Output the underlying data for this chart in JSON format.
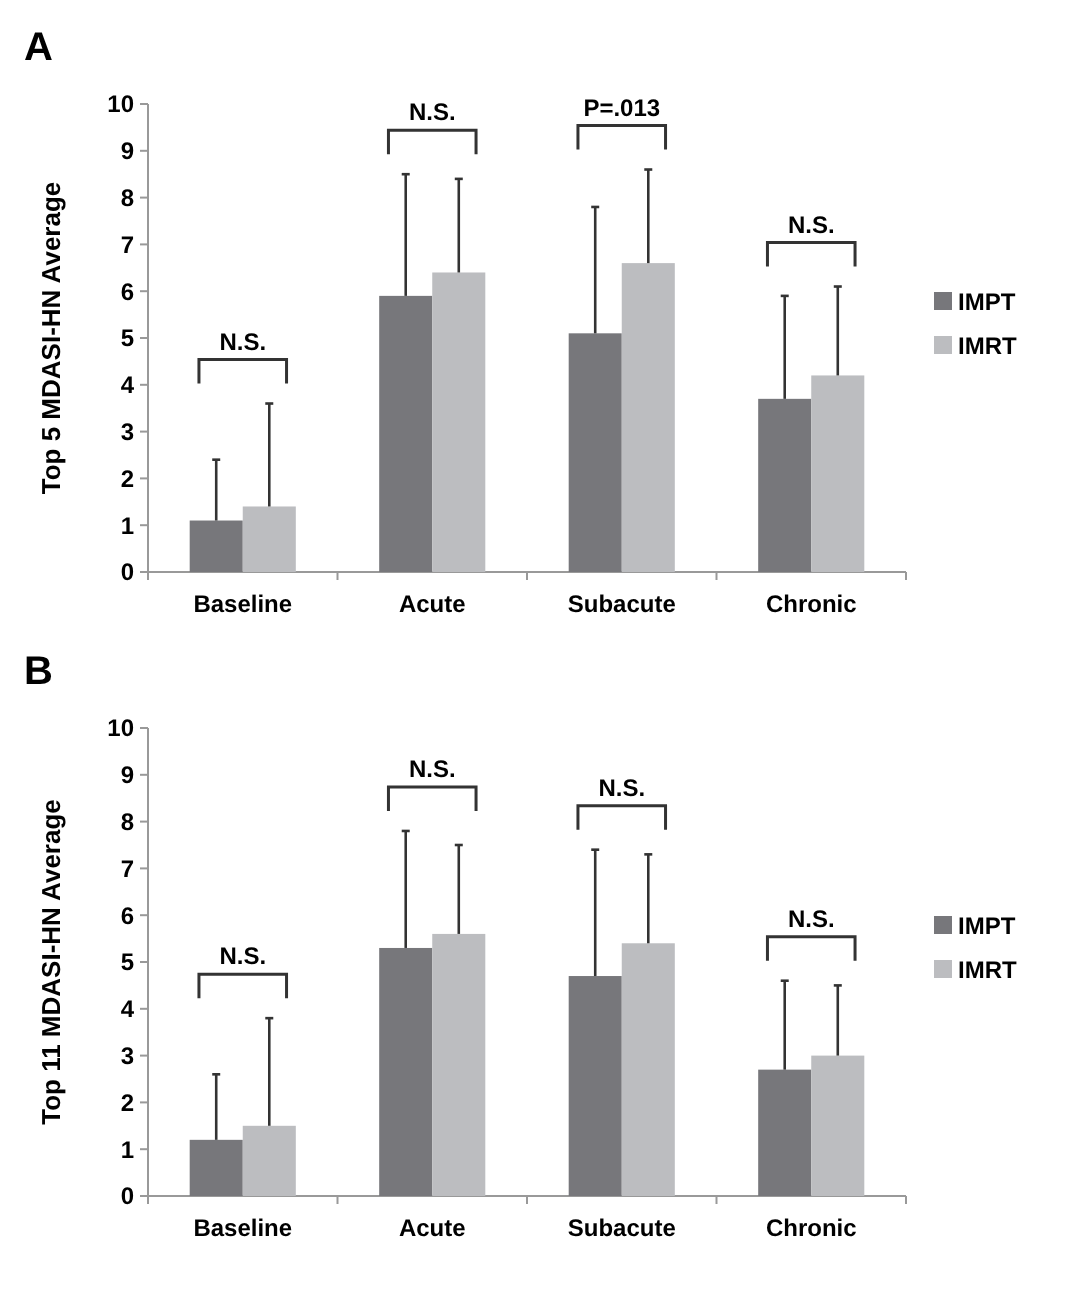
{
  "chart_data": [
    {
      "type": "bar",
      "title": "A",
      "ylabel": "Top 5 MDASI-HN Average",
      "categories": [
        "Baseline",
        "Acute",
        "Subacute",
        "Chronic"
      ],
      "ylim": [
        0,
        10
      ],
      "yticks": [
        0,
        1,
        2,
        3,
        4,
        5,
        6,
        7,
        8,
        9,
        10
      ],
      "grid": false,
      "legend": "right",
      "series": [
        {
          "name": "IMPT",
          "color": "#77777b",
          "values": [
            1.1,
            5.9,
            5.1,
            3.7
          ],
          "errors": [
            [
              1.1,
              2.4
            ],
            [
              5.9,
              8.5
            ],
            [
              5.1,
              7.8
            ],
            [
              3.7,
              5.9
            ]
          ]
        },
        {
          "name": "IMRT",
          "color": "#bcbdc0",
          "values": [
            1.4,
            6.4,
            6.6,
            4.2
          ],
          "errors": [
            [
              1.4,
              3.6
            ],
            [
              6.4,
              8.4
            ],
            [
              6.6,
              8.6
            ],
            [
              4.2,
              6.1
            ]
          ]
        }
      ],
      "annotations": [
        "N.S.",
        "N.S.",
        "P=.013",
        "N.S."
      ]
    },
    {
      "type": "bar",
      "title": "B",
      "ylabel": "Top 11 MDASI-HN Average",
      "categories": [
        "Baseline",
        "Acute",
        "Subacute",
        "Chronic"
      ],
      "ylim": [
        0,
        10
      ],
      "yticks": [
        0,
        1,
        2,
        3,
        4,
        5,
        6,
        7,
        8,
        9,
        10
      ],
      "grid": false,
      "legend": "right",
      "series": [
        {
          "name": "IMPT",
          "color": "#77777b",
          "values": [
            1.2,
            5.3,
            4.7,
            2.7
          ],
          "errors": [
            [
              1.2,
              2.6
            ],
            [
              5.3,
              7.8
            ],
            [
              4.7,
              7.4
            ],
            [
              2.7,
              4.6
            ]
          ]
        },
        {
          "name": "IMRT",
          "color": "#bcbdc0",
          "values": [
            1.5,
            5.6,
            5.4,
            3.0
          ],
          "errors": [
            [
              1.5,
              3.8
            ],
            [
              5.6,
              7.5
            ],
            [
              5.4,
              7.3
            ],
            [
              3.0,
              4.5
            ]
          ]
        }
      ],
      "annotations": [
        "N.S.",
        "N.S.",
        "N.S.",
        "N.S."
      ]
    }
  ]
}
